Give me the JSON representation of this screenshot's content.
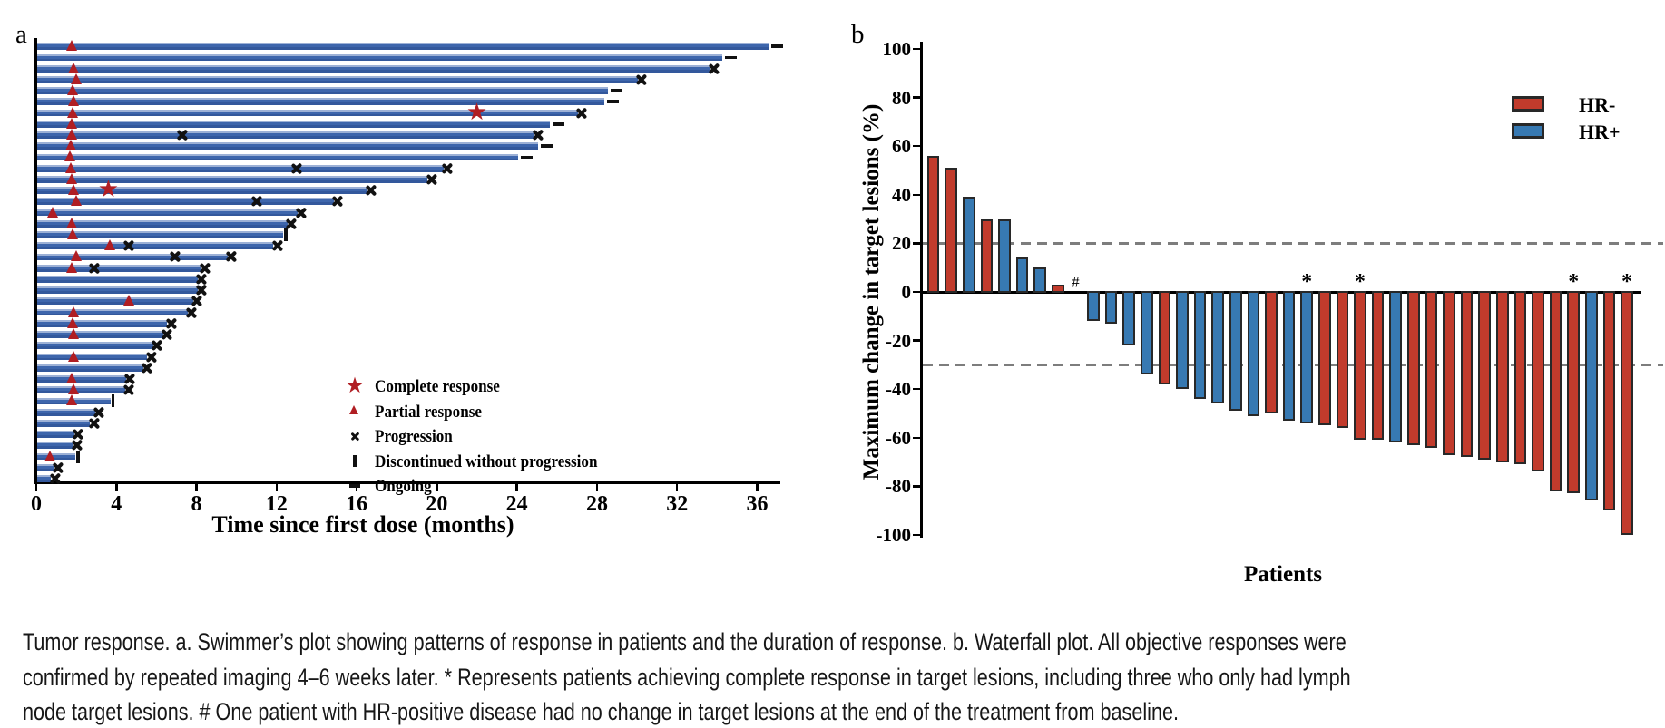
{
  "figure": {
    "panel_a_label": "a",
    "panel_b_label": "b"
  },
  "colors": {
    "swimmer_bar": "#3a62a9",
    "marker_red": "#b01e23",
    "marker_black": "#111111",
    "hr_neg": "#c13b2c",
    "hr_pos": "#3779b2",
    "dashed_reference": "#7d7d7d",
    "axis": "#000000"
  },
  "caption": {
    "lines": [
      "Tumor response. a. Swimmer’s plot showing patterns of response in patients and the duration of response. b. Waterfall plot. All objective responses were",
      "confirmed by repeated imaging 4–6 weeks later. * Represents patients achieving complete response in target lesions, including three who only had lymph",
      "node target lesions. # One patient with HR-positive disease had no change in target lesions at the end of the treatment from baseline."
    ]
  },
  "chart_data": [
    {
      "type": "bar",
      "name": "swimmers-plot",
      "orientation": "horizontal",
      "xlabel": "Time since first dose (months)",
      "x_ticks": [
        0,
        4,
        8,
        12,
        16,
        20,
        24,
        28,
        32,
        36
      ],
      "xlim": [
        0,
        37
      ],
      "grid": false,
      "legend_position": "lower-right-inside",
      "legend": [
        {
          "symbol": "star",
          "label": "Complete response"
        },
        {
          "symbol": "triangle",
          "label": "Partial response"
        },
        {
          "symbol": "cross",
          "label": "Progression"
        },
        {
          "symbol": "vbar",
          "label": "Discontinued without progression"
        },
        {
          "symbol": "dash",
          "label": "Ongoing"
        }
      ],
      "patients": [
        {
          "months": 36.5,
          "pr": 1.8,
          "end": "ongoing"
        },
        {
          "months": 34.2,
          "end": "ongoing"
        },
        {
          "months": 33.6,
          "pr": 1.9,
          "end": "progression"
        },
        {
          "months": 30.0,
          "pr": 2.0,
          "end": "progression"
        },
        {
          "months": 28.5,
          "pr": 1.85,
          "end": "ongoing"
        },
        {
          "months": 28.3,
          "pr": 1.9,
          "end": "ongoing"
        },
        {
          "months": 27.0,
          "pr": 1.85,
          "cr": 22.0,
          "end": "progression"
        },
        {
          "months": 25.6,
          "pr": 1.8,
          "end": "ongoing"
        },
        {
          "months": 24.8,
          "pr": 1.8,
          "mid_x": [
            7.3
          ],
          "end": "progression"
        },
        {
          "months": 25.0,
          "pr": 1.75,
          "end": "ongoing"
        },
        {
          "months": 24.0,
          "pr": 1.7,
          "end": "ongoing"
        },
        {
          "months": 20.3,
          "pr": 1.75,
          "mid_x": [
            13.0
          ],
          "end": "progression"
        },
        {
          "months": 19.5,
          "pr": 1.8,
          "end": "progression"
        },
        {
          "months": 16.5,
          "pr": 1.9,
          "cr": 3.6,
          "end": "progression"
        },
        {
          "months": 14.8,
          "pr": 2.0,
          "mid_x": [
            11.0
          ],
          "end": "progression"
        },
        {
          "months": 13.0,
          "pr": 0.85,
          "end": "progression"
        },
        {
          "months": 12.5,
          "pr": 1.8,
          "end": "progression"
        },
        {
          "months": 12.3,
          "pr": 1.85,
          "end": "discontinued"
        },
        {
          "months": 11.8,
          "pr": 3.7,
          "mid_x": [
            4.6
          ],
          "end": "progression"
        },
        {
          "months": 9.5,
          "pr": 2.0,
          "mid_x": [
            6.9
          ],
          "end": "progression"
        },
        {
          "months": 8.2,
          "pr": 1.8,
          "mid_x": [
            2.9
          ],
          "end": "progression"
        },
        {
          "months": 8.0,
          "end": "progression"
        },
        {
          "months": 8.0,
          "end": "progression"
        },
        {
          "months": 7.8,
          "pr": 4.65,
          "end": "progression"
        },
        {
          "months": 7.5,
          "pr": 1.9,
          "end": "progression"
        },
        {
          "months": 6.5,
          "pr": 1.85,
          "end": "progression"
        },
        {
          "months": 6.3,
          "pr": 1.9,
          "end": "progression"
        },
        {
          "months": 5.8,
          "end": "progression"
        },
        {
          "months": 5.5,
          "pr": 1.9,
          "end": "progression"
        },
        {
          "months": 5.3,
          "end": "progression"
        },
        {
          "months": 4.45,
          "pr": 1.8,
          "end": "progression"
        },
        {
          "months": 4.4,
          "pr": 1.9,
          "end": "progression"
        },
        {
          "months": 3.65,
          "pr": 1.8,
          "end": "discontinued"
        },
        {
          "months": 2.9,
          "end": "progression"
        },
        {
          "months": 2.65,
          "end": "progression"
        },
        {
          "months": 1.85,
          "end": "progression"
        },
        {
          "months": 1.8,
          "end": "progression"
        },
        {
          "months": 1.9,
          "pr": 0.7,
          "end": "discontinued"
        },
        {
          "months": 0.85,
          "end": "progression"
        },
        {
          "months": 0.7,
          "end": "progression"
        }
      ]
    },
    {
      "type": "bar",
      "name": "waterfall-plot",
      "ylabel": "Maximum change in target lesions (%)",
      "xlabel": "Patients",
      "ylim": [
        -100,
        100
      ],
      "y_ticks": [
        100,
        80,
        60,
        40,
        20,
        0,
        -20,
        -40,
        -60,
        -80,
        -100
      ],
      "reference_lines": [
        20,
        -30
      ],
      "grid": false,
      "legend_position": "upper-right-inside",
      "legend": [
        {
          "label": "HR-",
          "group": "HR-"
        },
        {
          "label": "HR+",
          "group": "HR+"
        }
      ],
      "bars": [
        {
          "value": 56,
          "group": "HR-"
        },
        {
          "value": 51,
          "group": "HR-"
        },
        {
          "value": 39,
          "group": "HR+"
        },
        {
          "value": 30,
          "group": "HR-"
        },
        {
          "value": 30,
          "group": "HR+"
        },
        {
          "value": 14,
          "group": "HR+"
        },
        {
          "value": 10,
          "group": "HR+"
        },
        {
          "value": 3,
          "group": "HR-"
        },
        {
          "value": 0,
          "group": "HR+",
          "mark": "#"
        },
        {
          "value": -12,
          "group": "HR+"
        },
        {
          "value": -13,
          "group": "HR+"
        },
        {
          "value": -22,
          "group": "HR+"
        },
        {
          "value": -34,
          "group": "HR+"
        },
        {
          "value": -38,
          "group": "HR-"
        },
        {
          "value": -40,
          "group": "HR+"
        },
        {
          "value": -44,
          "group": "HR+"
        },
        {
          "value": -46,
          "group": "HR+"
        },
        {
          "value": -49,
          "group": "HR+"
        },
        {
          "value": -51,
          "group": "HR+"
        },
        {
          "value": -50,
          "group": "HR-"
        },
        {
          "value": -53,
          "group": "HR+"
        },
        {
          "value": -54,
          "group": "HR+",
          "mark": "*"
        },
        {
          "value": -55,
          "group": "HR-"
        },
        {
          "value": -56,
          "group": "HR-"
        },
        {
          "value": -61,
          "group": "HR-",
          "mark": "*"
        },
        {
          "value": -61,
          "group": "HR-"
        },
        {
          "value": -62,
          "group": "HR+"
        },
        {
          "value": -63,
          "group": "HR-"
        },
        {
          "value": -64,
          "group": "HR-"
        },
        {
          "value": -67,
          "group": "HR-"
        },
        {
          "value": -68,
          "group": "HR-"
        },
        {
          "value": -69,
          "group": "HR-"
        },
        {
          "value": -70,
          "group": "HR-"
        },
        {
          "value": -71,
          "group": "HR-"
        },
        {
          "value": -74,
          "group": "HR-"
        },
        {
          "value": -82,
          "group": "HR-"
        },
        {
          "value": -83,
          "group": "HR-",
          "mark": "*"
        },
        {
          "value": -86,
          "group": "HR+"
        },
        {
          "value": -90,
          "group": "HR-"
        },
        {
          "value": -100,
          "group": "HR-",
          "mark": "*"
        }
      ]
    }
  ]
}
